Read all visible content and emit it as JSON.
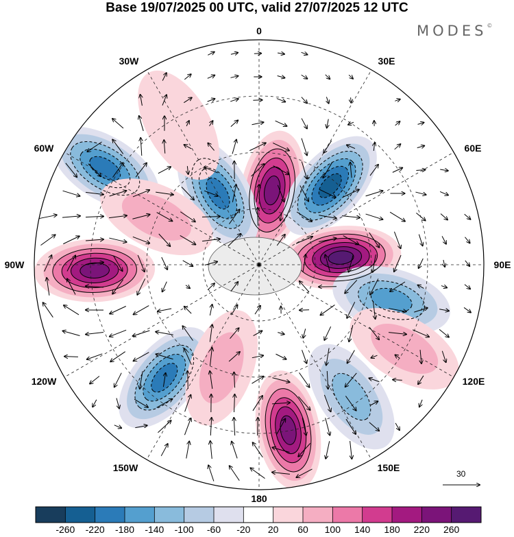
{
  "title": "Base 19/07/2025 00 UTC, valid 27/07/2025 12 UTC",
  "brand": "MODES",
  "brand_mark": "©",
  "longitude_labels": {
    "top": "0",
    "e30": "30E",
    "e60": "60E",
    "e90": "90E",
    "e120": "120E",
    "e150": "150E",
    "bottom": "180",
    "w150": "150W",
    "w120": "120W",
    "w90": "90W",
    "w60": "60W",
    "w30": "30W"
  },
  "reference_vector": {
    "label": "30"
  },
  "colorbar": {
    "levels": [
      "-260",
      "-220",
      "-180",
      "-140",
      "-100",
      "-60",
      "-20",
      "20",
      "60",
      "100",
      "140",
      "180",
      "220",
      "260"
    ],
    "colors": [
      "#183d5c",
      "#155f92",
      "#2b7bb8",
      "#549fcf",
      "#89bbdc",
      "#b6cbe3",
      "#dfe0ee",
      "#ffffff",
      "#fad6dc",
      "#f5aec2",
      "#ec79a8",
      "#d23c8f",
      "#a31a80",
      "#7b1479",
      "#561a72"
    ]
  },
  "anomaly_centers": [
    {
      "sign": "positive",
      "level": 6,
      "lon": 10,
      "colat": 110
    },
    {
      "sign": "negative",
      "level": 6,
      "lon": 42,
      "colat": 155
    },
    {
      "sign": "positive",
      "level": 7,
      "lon": 85,
      "colat": 120
    },
    {
      "sign": "negative",
      "level": 4,
      "lon": 105,
      "colat": 200
    },
    {
      "sign": "positive",
      "level": 2,
      "lon": 120,
      "colat": 245
    },
    {
      "sign": "negative",
      "level": 3,
      "lon": 145,
      "colat": 235
    },
    {
      "sign": "positive",
      "level": 6,
      "lon": 170,
      "colat": 245
    },
    {
      "sign": "negative",
      "level": 5,
      "lon": 220,
      "colat": 215
    },
    {
      "sign": "positive",
      "level": 6,
      "lon": 268,
      "colat": 240
    },
    {
      "sign": "negative",
      "level": 5,
      "lon": 302,
      "colat": 265
    },
    {
      "sign": "negative",
      "level": 5,
      "lon": 330,
      "colat": 120
    },
    {
      "sign": "positive",
      "level": 2,
      "lon": 295,
      "colat": 165
    },
    {
      "sign": "positive",
      "level": 1,
      "lon": 330,
      "colat": 235
    },
    {
      "sign": "positive",
      "level": 2,
      "lon": 200,
      "colat": 160
    }
  ]
}
